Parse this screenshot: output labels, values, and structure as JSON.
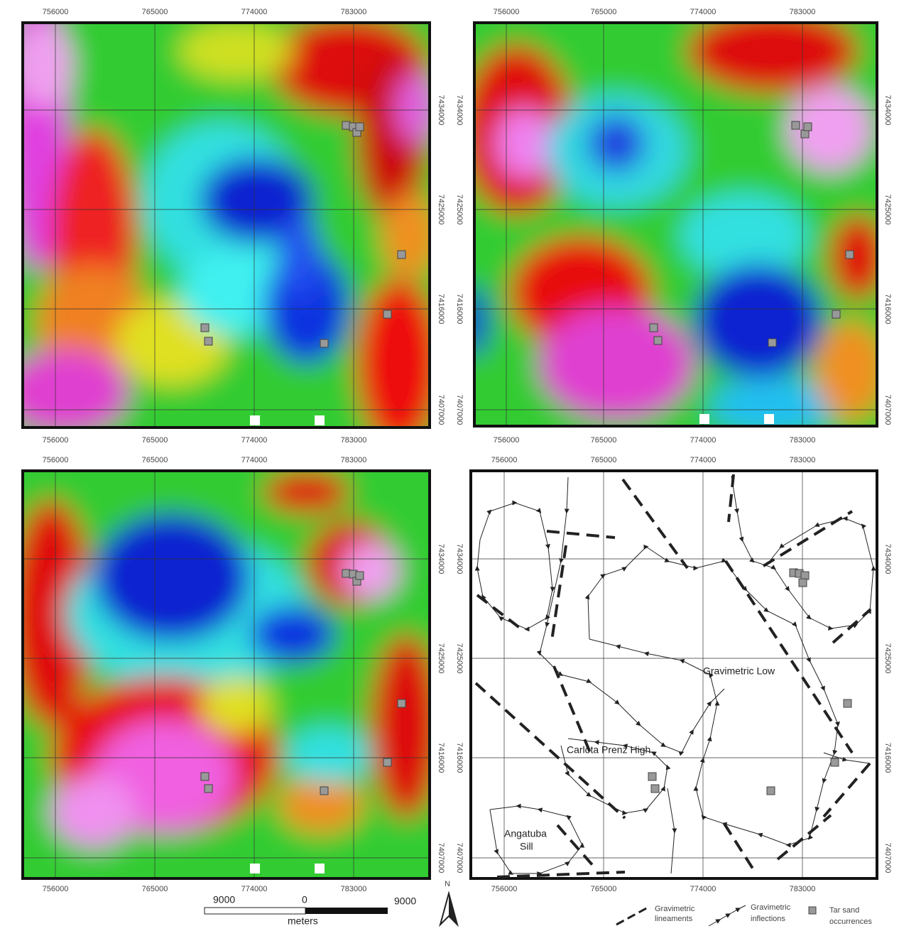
{
  "axes": {
    "x_labels": [
      "756000",
      "765000",
      "774000",
      "783000"
    ],
    "y_labels": [
      "7434000",
      "7425000",
      "7416000",
      "7407000"
    ]
  },
  "map_labels": {
    "gravimetric_low": "Gravimetric Low",
    "carlota_prenz_high": "Carlota Prenz High",
    "angatuba_sill": [
      "Angatuba",
      "Sill"
    ]
  },
  "scale_bar": {
    "left": "9000",
    "zero": "0",
    "right": "9000",
    "unit": "meters"
  },
  "north": "N",
  "legend": {
    "lineaments": [
      "Gravimetric",
      "lineaments"
    ],
    "inflections": [
      "Gravimetric",
      "inflections"
    ],
    "tar_sand": [
      "Tar sand",
      "occurrences"
    ]
  }
}
